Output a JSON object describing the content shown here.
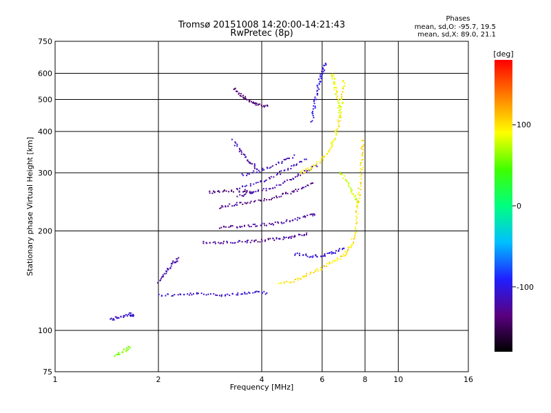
{
  "chart_data": {
    "type": "scatter",
    "title": "Tromsø 20151008 14:20:00-14:21:43",
    "subtitle": "RwPretec (8p)",
    "xlabel": "Frequency [MHz]",
    "ylabel": "Stationary phase Virtual Height [km]",
    "x_scale": "log",
    "y_scale": "log",
    "xlim": [
      1,
      16
    ],
    "ylim": [
      75,
      750
    ],
    "x_ticks": [
      1,
      2,
      4,
      6,
      8,
      10,
      16
    ],
    "x_tick_labels": [
      "1",
      "2",
      "4",
      "6",
      "8",
      "10",
      "16"
    ],
    "y_ticks": [
      75,
      100,
      200,
      300,
      400,
      500,
      600,
      750
    ],
    "y_tick_labels": [
      "75",
      "100",
      "200",
      "300",
      "400",
      "500",
      "600",
      "750"
    ],
    "grid": true,
    "stats": {
      "heading": "Phases",
      "line_o": "mean, sd,O: -95.7, 19.5",
      "line_x": "mean, sd,X:  89.0, 21.1"
    },
    "colorbar": {
      "label": "[deg]",
      "range": [
        -180,
        180
      ],
      "ticks": [
        100,
        0,
        -100
      ],
      "tick_labels": [
        "100",
        "0",
        "-100"
      ],
      "colormap": [
        "#000000",
        "#5a0080",
        "#2020ff",
        "#00c0ff",
        "#00ff80",
        "#40ff00",
        "#ffff00",
        "#ff8000",
        "#ff0000"
      ]
    },
    "traces": [
      {
        "phase": -110,
        "points": [
          [
            2.0,
            128
          ],
          [
            2.3,
            128
          ],
          [
            2.6,
            129
          ],
          [
            3.0,
            128
          ],
          [
            3.4,
            129
          ],
          [
            3.8,
            130
          ],
          [
            4.2,
            130
          ]
        ]
      },
      {
        "phase": -120,
        "points": [
          [
            2.0,
            140
          ],
          [
            2.1,
            150
          ],
          [
            2.2,
            160
          ],
          [
            2.3,
            165
          ]
        ]
      },
      {
        "phase": -125,
        "points": [
          [
            2.7,
            185
          ],
          [
            3.0,
            184
          ],
          [
            3.4,
            185
          ],
          [
            3.8,
            186
          ],
          [
            4.2,
            188
          ],
          [
            4.6,
            190
          ],
          [
            5.0,
            193
          ],
          [
            5.5,
            197
          ]
        ]
      },
      {
        "phase": -125,
        "points": [
          [
            3.0,
            205
          ],
          [
            3.4,
            206
          ],
          [
            3.8,
            208
          ],
          [
            4.3,
            210
          ],
          [
            4.8,
            215
          ],
          [
            5.3,
            220
          ],
          [
            5.8,
            226
          ]
        ]
      },
      {
        "phase": -130,
        "points": [
          [
            3.0,
            235
          ],
          [
            3.3,
            240
          ],
          [
            3.7,
            244
          ],
          [
            4.2,
            250
          ],
          [
            4.7,
            258
          ],
          [
            5.2,
            268
          ],
          [
            5.7,
            280
          ]
        ]
      },
      {
        "phase": -135,
        "points": [
          [
            2.8,
            262
          ],
          [
            3.1,
            264
          ],
          [
            3.5,
            265
          ],
          [
            3.8,
            262
          ]
        ]
      },
      {
        "phase": -120,
        "points": [
          [
            3.4,
            255
          ],
          [
            3.8,
            262
          ],
          [
            4.3,
            270
          ],
          [
            4.8,
            285
          ],
          [
            5.3,
            300
          ],
          [
            5.8,
            318
          ]
        ]
      },
      {
        "phase": -115,
        "points": [
          [
            3.4,
            270
          ],
          [
            3.9,
            280
          ],
          [
            4.4,
            295
          ],
          [
            4.9,
            312
          ],
          [
            5.4,
            330
          ]
        ]
      },
      {
        "phase": -110,
        "points": [
          [
            3.5,
            295
          ],
          [
            4.0,
            305
          ],
          [
            4.5,
            320
          ],
          [
            5.0,
            340
          ]
        ]
      },
      {
        "phase": -120,
        "points": [
          [
            3.3,
            375
          ],
          [
            3.5,
            345
          ],
          [
            3.7,
            325
          ],
          [
            3.9,
            305
          ]
        ]
      },
      {
        "phase": -140,
        "points": [
          [
            3.3,
            540
          ],
          [
            3.5,
            515
          ],
          [
            3.7,
            495
          ],
          [
            3.9,
            482
          ],
          [
            4.2,
            475
          ]
        ]
      },
      {
        "phase": -100,
        "points": [
          [
            5.6,
            430
          ],
          [
            5.7,
            480
          ],
          [
            5.8,
            530
          ],
          [
            5.9,
            570
          ],
          [
            6.0,
            610
          ],
          [
            6.2,
            650
          ]
        ]
      },
      {
        "phase": -105,
        "points": [
          [
            5.0,
            170
          ],
          [
            5.5,
            168
          ],
          [
            6.0,
            168
          ],
          [
            6.5,
            172
          ],
          [
            7.0,
            178
          ]
        ]
      },
      {
        "phase": 100,
        "points": [
          [
            4.5,
            138
          ],
          [
            5.0,
            142
          ],
          [
            5.5,
            148
          ],
          [
            6.0,
            155
          ],
          [
            6.5,
            162
          ],
          [
            7.0,
            170
          ],
          [
            7.3,
            180
          ],
          [
            7.5,
            200
          ],
          [
            7.6,
            230
          ],
          [
            7.7,
            260
          ],
          [
            7.8,
            300
          ],
          [
            7.85,
            340
          ],
          [
            7.9,
            380
          ]
        ]
      },
      {
        "phase": 95,
        "points": [
          [
            5.2,
            300
          ],
          [
            5.6,
            310
          ],
          [
            6.0,
            330
          ],
          [
            6.3,
            350
          ],
          [
            6.5,
            380
          ],
          [
            6.7,
            420
          ],
          [
            6.8,
            470
          ],
          [
            6.9,
            520
          ],
          [
            6.95,
            580
          ]
        ]
      },
      {
        "phase": 85,
        "points": [
          [
            6.4,
            600
          ],
          [
            6.5,
            560
          ],
          [
            6.6,
            520
          ],
          [
            6.7,
            480
          ],
          [
            6.8,
            440
          ]
        ]
      },
      {
        "phase": 80,
        "points": [
          [
            6.8,
            300
          ],
          [
            7.1,
            280
          ],
          [
            7.4,
            260
          ],
          [
            7.6,
            240
          ]
        ]
      },
      {
        "phase": -110,
        "points": [
          [
            1.45,
            108
          ],
          [
            1.55,
            110
          ],
          [
            1.65,
            112
          ],
          [
            1.7,
            110
          ]
        ]
      },
      {
        "phase": 60,
        "points": [
          [
            1.5,
            84
          ],
          [
            1.6,
            87
          ],
          [
            1.65,
            90
          ]
        ]
      }
    ]
  }
}
